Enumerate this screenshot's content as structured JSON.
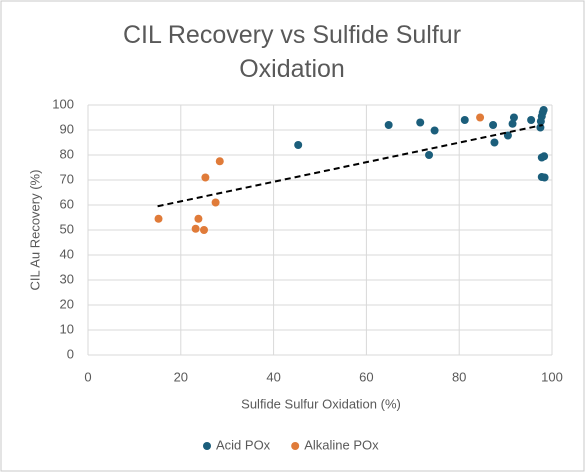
{
  "chart_data": {
    "type": "scatter",
    "title": "CIL Recovery vs Sulfide Sulfur Oxidation",
    "x_label": "Sulfide Sulfur Oxidation (%)",
    "y_label": "CIL Au Recovery (%)",
    "xlim": [
      0,
      100
    ],
    "xticks": [
      0,
      20,
      40,
      60,
      80,
      100
    ],
    "ylim": [
      0,
      100
    ],
    "yticks": [
      0,
      10,
      20,
      30,
      40,
      50,
      60,
      70,
      80,
      90,
      100
    ],
    "grid": true,
    "legend": "bottom",
    "series": [
      {
        "name": "Acid POx",
        "color": "#1b5e7b",
        "x": [
          45.3,
          64.8,
          71.6,
          73.5,
          74.7,
          81.2,
          87.3,
          87.6,
          90.5,
          91.5,
          91.8,
          95.5,
          97.5,
          97.6,
          97.8,
          98,
          98.2,
          97.8,
          98.3,
          97.8,
          98.4
        ],
        "y": [
          84,
          92,
          93,
          80,
          89.8,
          94,
          92,
          85,
          87.8,
          92.5,
          95,
          94,
          91,
          93.5,
          95.5,
          97,
          98,
          79,
          79.5,
          71.2,
          71
        ]
      },
      {
        "name": "Alkaline POx",
        "color": "#e07b39",
        "x": [
          15.2,
          23.2,
          23.8,
          25,
          25.3,
          27.5,
          28.4,
          84.5
        ],
        "y": [
          54.5,
          50.5,
          54.5,
          50,
          71,
          61,
          77.5,
          95
        ]
      }
    ],
    "trendline": {
      "x": [
        15,
        98
      ],
      "y": [
        59.5,
        92
      ],
      "color": "#000000",
      "dashed": true
    }
  }
}
